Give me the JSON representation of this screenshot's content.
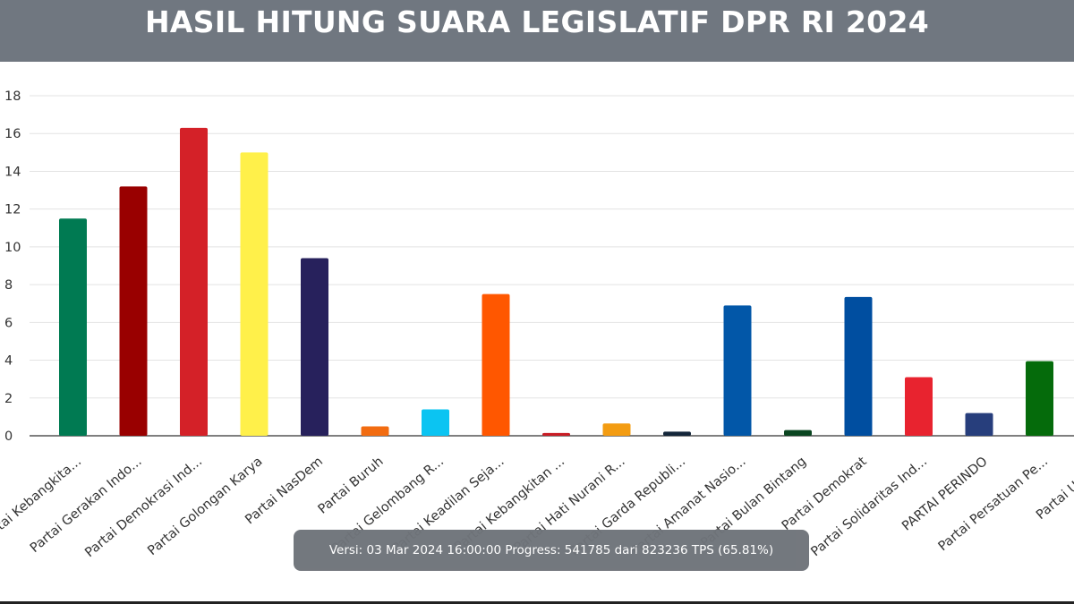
{
  "header": {
    "title": "HASIL HITUNG SUARA LEGISLATIF DPR RI 2024"
  },
  "status": {
    "text": "Versi: 03 Mar 2024 16:00:00 Progress: 541785 dari 823236 TPS (65.81%)"
  },
  "chart_data": {
    "type": "bar",
    "title": "HASIL HITUNG SUARA LEGISLATIF DPR RI 2024",
    "xlabel": "",
    "ylabel": "",
    "ylim": [
      0,
      18
    ],
    "yticks": [
      0,
      2,
      4,
      6,
      8,
      10,
      12,
      14,
      16,
      18
    ],
    "grid": true,
    "categories": [
      "Partai Kebangkita...",
      "Partai Gerakan Indo...",
      "Partai Demokrasi Ind...",
      "Partai Golongan Karya",
      "Partai NasDem",
      "Partai Buruh",
      "Partai Gelombang R...",
      "Partai Keadilan Seja...",
      "Partai Kebangkitan ...",
      "Partai Hati Nurani R...",
      "Partai Garda Republi...",
      "Partai Amanat Nasio...",
      "Partai Bulan Bintang",
      "Partai Demokrat",
      "Partai Solidaritas Ind...",
      "PARTAI PERINDO",
      "Partai Persatuan Pe...",
      "Partai Ummat"
    ],
    "values": [
      11.5,
      13.2,
      16.3,
      15.0,
      9.4,
      0.5,
      1.4,
      7.5,
      0.15,
      0.65,
      0.22,
      6.9,
      0.3,
      7.35,
      3.1,
      1.2,
      3.95,
      0.0
    ],
    "colors": [
      "#007a52",
      "#990000",
      "#d42128",
      "#fff04a",
      "#27215c",
      "#f26c11",
      "#0bc4f2",
      "#ff5700",
      "#c81d25",
      "#f39c12",
      "#14263a",
      "#0257a8",
      "#0a4520",
      "#004ea0",
      "#e8232f",
      "#273e7c",
      "#056b0b",
      "#6b6b6b"
    ]
  }
}
